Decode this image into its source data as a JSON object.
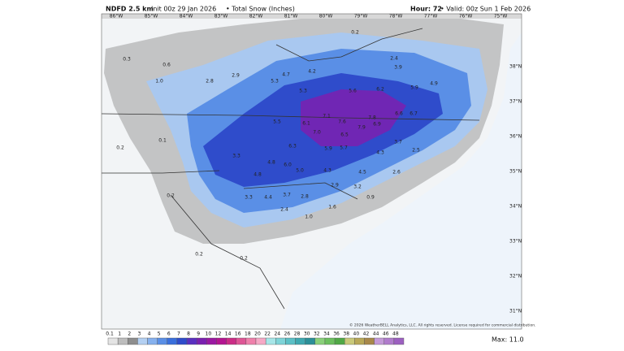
{
  "header": {
    "product": "NDFD 2.5 km",
    "init": "Init 00z 29 Jan 2026",
    "field": "• Total Snow (Inches)",
    "hour": "Hour: 72",
    "valid": "• Valid: 00z Sun 1 Feb 2026"
  },
  "lon_labels": [
    "86°W",
    "85°W",
    "84°W",
    "83°W",
    "82°W",
    "81°W",
    "80°W",
    "79°W",
    "78°W",
    "77°W",
    "76°W",
    "75°W"
  ],
  "lat_labels": [
    "38°N",
    "37°N",
    "36°N",
    "35°N",
    "34°N",
    "33°N",
    "32°N",
    "31°N"
  ],
  "snow_labels": [
    "0.2",
    "2.4",
    "3.9",
    "4.7",
    "4.2",
    "5.3",
    "5.3",
    "5.6",
    "6.2",
    "5.9",
    "4.9",
    "7.1",
    "7.6",
    "7.8",
    "6.6",
    "6.7",
    "5.5",
    "6.1",
    "7.0",
    "6.5",
    "7.9",
    "6.9",
    "5.9",
    "5.7",
    "3.7",
    "2.5",
    "4.3",
    "6.3",
    "3.3",
    "4.8",
    "6.0",
    "4.3",
    "4.5",
    "2.6",
    "4.8",
    "5.0",
    "3.2",
    "2.9",
    "2.8",
    "3.7",
    "4.4",
    "3.3",
    "2.4",
    "1.6",
    "1.0",
    "0.9",
    "0.2",
    "0.2",
    "0.1",
    "1.0",
    "0.3",
    "0.6",
    "2.8",
    "2.9",
    "0.2",
    "0.2"
  ],
  "colorbar": {
    "ticks": [
      0.1,
      1,
      2,
      3,
      4,
      5,
      6,
      7,
      8,
      9,
      10,
      12,
      14,
      16,
      18,
      20,
      22,
      24,
      26,
      28,
      30,
      32,
      34,
      36,
      38,
      40,
      42,
      44,
      46,
      48
    ],
    "colors": [
      "#e4e4e4",
      "#bdbdbd",
      "#8e8e8e",
      "#b4d0f2",
      "#86b1ee",
      "#5a8fe6",
      "#3a6fdc",
      "#2f4ccb",
      "#5a30c0",
      "#7b20b0",
      "#9b18a2",
      "#b41591",
      "#cb2c86",
      "#de5595",
      "#ef80ab",
      "#f6a9c6",
      "#a7e6e8",
      "#7fd4d8",
      "#5cc0c6",
      "#3fa8b0",
      "#2c8f98",
      "#8ad07a",
      "#6cbf5e",
      "#50a846",
      "#c9c97a",
      "#b8a858",
      "#a8884a",
      "#c49ad8",
      "#b07ccc",
      "#9c60c0"
    ]
  },
  "max": "Max: 11.0",
  "copyright": "© 2026 WeatherBELL Analytics, LLC. All rights reserved. License required for commercial distribution."
}
